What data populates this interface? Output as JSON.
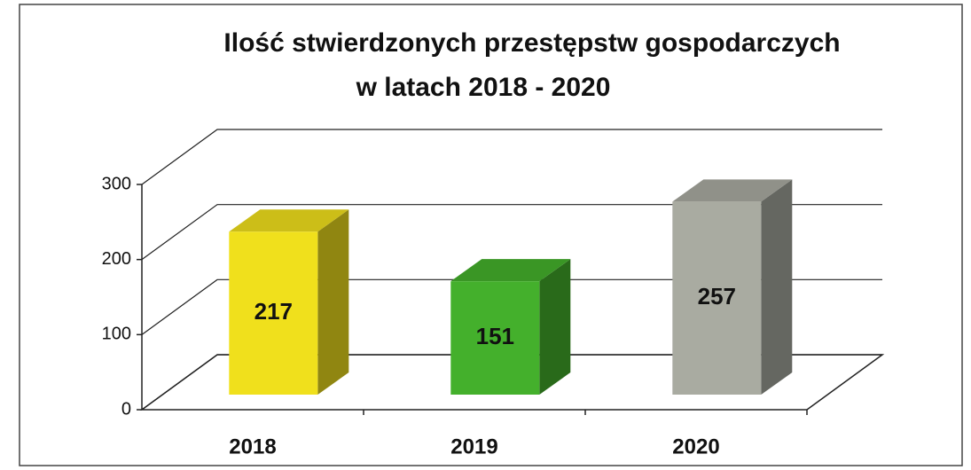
{
  "chart_data": {
    "type": "bar3d",
    "title": [
      "Ilość stwierdzonych przestępstw gospodarczych",
      "w  latach 2018 - 2020"
    ],
    "categories": [
      "2018",
      "2019",
      "2020"
    ],
    "values": [
      217,
      151,
      257
    ],
    "colors": [
      "#f0e01c",
      "#44b02c",
      "#a9aba1"
    ],
    "ylim": [
      0,
      300
    ],
    "yticks": [
      0,
      100,
      200,
      300
    ],
    "grid": true
  }
}
